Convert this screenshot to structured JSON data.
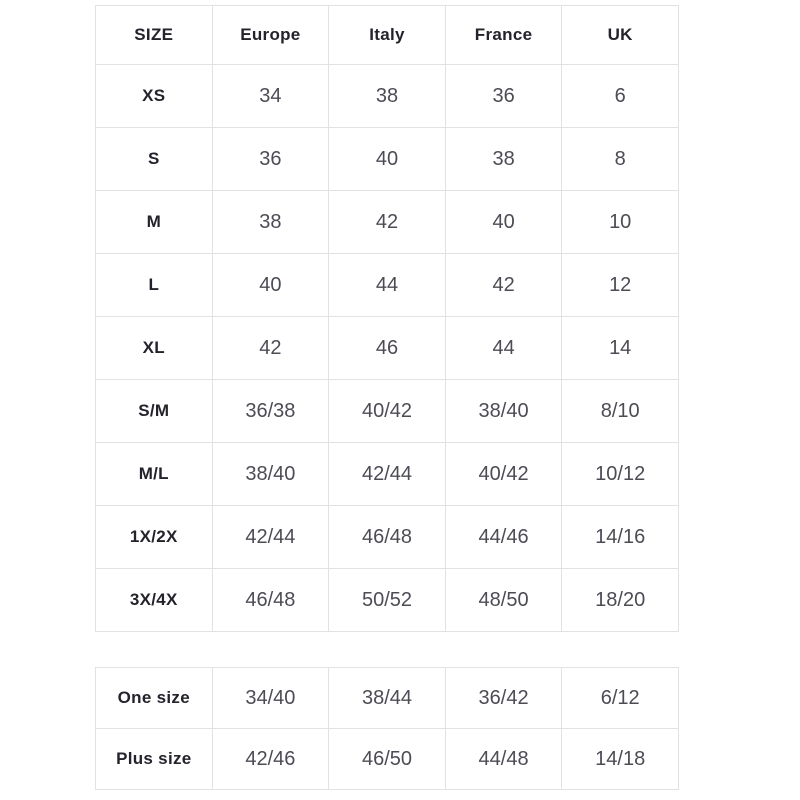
{
  "page": {
    "background_color": "#ffffff",
    "border_color": "#e2e2e2",
    "label_text_color": "#23232b",
    "value_text_color": "#4c4c55"
  },
  "size_table": {
    "columns": [
      "SIZE",
      "Europe",
      "Italy",
      "France",
      "UK"
    ],
    "rows": [
      {
        "size": "XS",
        "values": [
          "34",
          "38",
          "36",
          "6"
        ]
      },
      {
        "size": "S",
        "values": [
          "36",
          "40",
          "38",
          "8"
        ]
      },
      {
        "size": "M",
        "values": [
          "38",
          "42",
          "40",
          "10"
        ]
      },
      {
        "size": "L",
        "values": [
          "40",
          "44",
          "42",
          "12"
        ]
      },
      {
        "size": "XL",
        "values": [
          "42",
          "46",
          "44",
          "14"
        ]
      },
      {
        "size": "S/M",
        "values": [
          "36/38",
          "40/42",
          "38/40",
          "8/10"
        ]
      },
      {
        "size": "M/L",
        "values": [
          "38/40",
          "42/44",
          "40/42",
          "10/12"
        ]
      },
      {
        "size": "1X/2X",
        "values": [
          "42/44",
          "46/48",
          "44/46",
          "14/16"
        ]
      },
      {
        "size": "3X/4X",
        "values": [
          "46/48",
          "50/52",
          "48/50",
          "18/20"
        ]
      }
    ]
  },
  "special_size_table": {
    "rows": [
      {
        "size": "One size",
        "values": [
          "34/40",
          "38/44",
          "36/42",
          "6/12"
        ]
      },
      {
        "size": "Plus size",
        "values": [
          "42/46",
          "46/50",
          "44/48",
          "14/18"
        ]
      }
    ]
  }
}
